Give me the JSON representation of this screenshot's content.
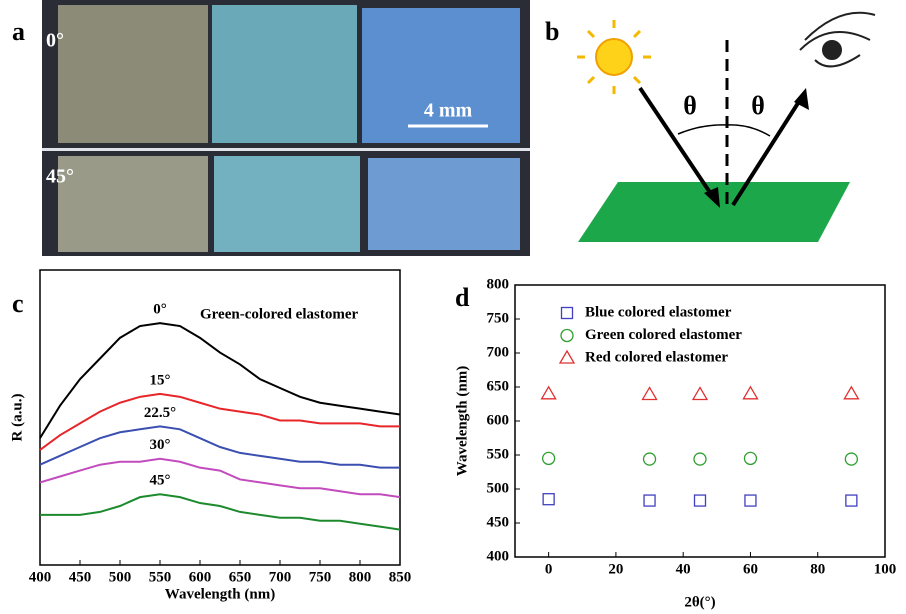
{
  "panels": {
    "a": {
      "label": "a",
      "top_angle": "0°",
      "bottom_angle": "45°",
      "scale_bar": "4 mm"
    },
    "b": {
      "label": "b",
      "angle": "θ"
    },
    "c": {
      "label": "c"
    },
    "d": {
      "label": "d"
    }
  },
  "chart_data": [
    {
      "type": "line",
      "xlabel": "Wavelength (nm)",
      "ylabel": "R (a.u.)",
      "annotation": "Green-colored elastomer",
      "x": [
        400,
        425,
        450,
        475,
        500,
        525,
        550,
        575,
        600,
        625,
        650,
        675,
        700,
        725,
        750,
        775,
        800,
        825,
        850
      ],
      "xlim": [
        400,
        850
      ],
      "xticks": [
        400,
        450,
        500,
        550,
        600,
        650,
        700,
        750,
        800,
        850
      ],
      "ylim": [
        0,
        100
      ],
      "series": [
        {
          "name": "0°",
          "color": "#000000",
          "values": [
            43,
            54,
            63,
            70,
            77,
            81,
            82,
            81,
            77,
            72,
            68,
            63,
            60,
            57,
            55,
            54,
            53,
            52,
            51
          ]
        },
        {
          "name": "15°",
          "color": "#e8262a",
          "values": [
            39,
            44,
            48,
            52,
            55,
            57,
            58,
            57,
            55,
            53,
            52,
            51,
            49,
            49,
            48,
            48,
            48,
            47,
            47
          ]
        },
        {
          "name": "22.5°",
          "color": "#3b4fb0",
          "values": [
            34,
            37,
            40,
            43,
            45,
            46,
            47,
            46,
            43,
            40,
            38,
            37,
            36,
            35,
            35,
            34,
            34,
            33,
            33
          ]
        },
        {
          "name": "30°",
          "color": "#c24bbd",
          "values": [
            28,
            30,
            32,
            34,
            35,
            35,
            36,
            35,
            33,
            32,
            29,
            28,
            27,
            26,
            26,
            25,
            24,
            24,
            23
          ]
        },
        {
          "name": "45°",
          "color": "#1d8a2e",
          "values": [
            17,
            17,
            17,
            18,
            20,
            23,
            24,
            23,
            21,
            20,
            18,
            17,
            16,
            16,
            15,
            15,
            14,
            13,
            12
          ]
        }
      ]
    },
    {
      "type": "scatter",
      "xlabel": "2θ(°)",
      "ylabel": "Wavelength (nm)",
      "x": [
        0,
        30,
        45,
        60,
        90
      ],
      "xlim": [
        -10,
        100
      ],
      "xticks": [
        0,
        20,
        40,
        60,
        80,
        100
      ],
      "ylim": [
        400,
        800
      ],
      "yticks": [
        400,
        450,
        500,
        550,
        600,
        650,
        700,
        750,
        800
      ],
      "legend": "upper left",
      "series": [
        {
          "name": "Blue colored  elastomer",
          "color": "#4040c0",
          "marker": "square",
          "values": [
            485,
            483,
            483,
            483,
            483
          ]
        },
        {
          "name": "Green colored elastomer",
          "color": "#2fa02f",
          "marker": "circle",
          "values": [
            545,
            544,
            544,
            545,
            544
          ]
        },
        {
          "name": "Red colored elastomer",
          "color": "#e03030",
          "marker": "triangle",
          "values": [
            640,
            639,
            639,
            640,
            640
          ]
        }
      ]
    }
  ]
}
